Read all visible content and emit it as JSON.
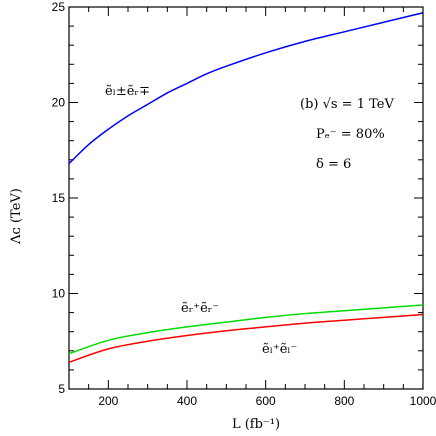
{
  "chart_data": {
    "type": "line",
    "xlabel": "L (fb⁻¹)",
    "ylabel": "Λᴄ (TeV)",
    "xlim": [
      100,
      1000
    ],
    "ylim": [
      5,
      25
    ],
    "xticks": [
      200,
      400,
      600,
      800,
      1000
    ],
    "yticks": [
      5,
      10,
      15,
      20,
      25
    ],
    "grid": false,
    "legend": "none",
    "annotations": [
      "(b) √s = 1 TeV",
      "Pₑ⁻ = 80%",
      "δ = 6"
    ],
    "series": [
      {
        "name": "ẽₗ±ẽᵣ∓",
        "color": "#0000ff",
        "x": [
          100,
          150,
          200,
          250,
          300,
          350,
          400,
          450,
          500,
          600,
          700,
          800,
          900,
          1000
        ],
        "y": [
          16.8,
          17.8,
          18.6,
          19.3,
          19.9,
          20.5,
          21.0,
          21.5,
          21.9,
          22.6,
          23.2,
          23.7,
          24.2,
          24.7
        ]
      },
      {
        "name": "ẽᵣ⁺ẽᵣ⁻",
        "color": "#00dd00",
        "x": [
          100,
          200,
          300,
          400,
          500,
          600,
          700,
          800,
          900,
          1000
        ],
        "y": [
          6.85,
          7.55,
          7.95,
          8.25,
          8.5,
          8.75,
          8.95,
          9.1,
          9.25,
          9.4
        ]
      },
      {
        "name": "ẽₗ⁺ẽₗ⁻",
        "color": "#ff0000",
        "x": [
          100,
          200,
          300,
          400,
          500,
          600,
          700,
          800,
          900,
          1000
        ],
        "y": [
          6.4,
          7.1,
          7.5,
          7.8,
          8.05,
          8.25,
          8.45,
          8.6,
          8.75,
          8.9
        ]
      }
    ]
  }
}
